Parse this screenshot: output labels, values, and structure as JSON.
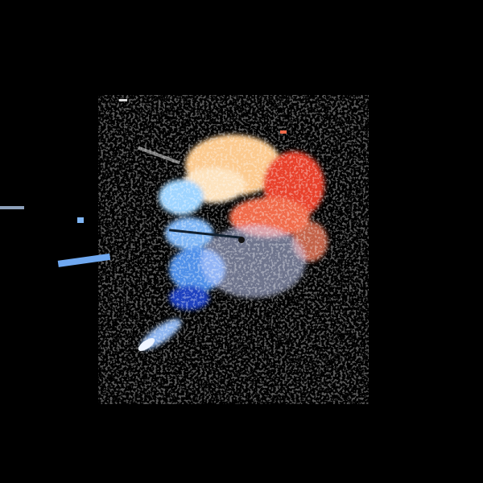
{
  "image": {
    "kind": "doppler-radar-velocity-display",
    "background_color": "#000000",
    "colors": {
      "outbound_strong": "#e8402a",
      "outbound_mid": "#f47a5a",
      "outbound_light": "#fbc98e",
      "near_zero": "#fff0d8",
      "inbound_light": "#9fd4ff",
      "inbound_mid": "#4f8fe8",
      "inbound_strong": "#1f3fbf"
    }
  }
}
